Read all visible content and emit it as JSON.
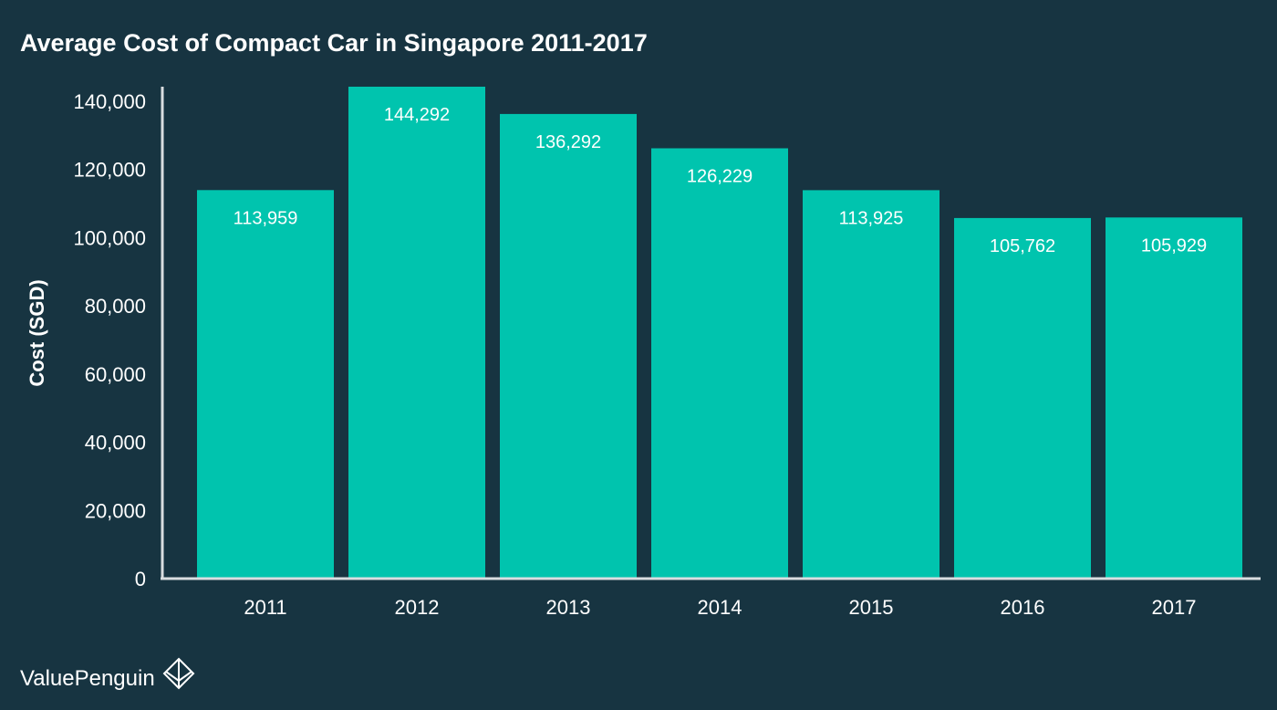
{
  "chart_data": {
    "type": "bar",
    "title": "Average Cost of Compact Car in Singapore 2011-2017",
    "xlabel": "",
    "ylabel": "Cost (SGD)",
    "categories": [
      "2011",
      "2012",
      "2013",
      "2014",
      "2015",
      "2016",
      "2017"
    ],
    "values": [
      113959,
      144292,
      136292,
      126229,
      113925,
      105762,
      105929
    ],
    "value_labels": [
      "113,959",
      "144,292",
      "136,292",
      "126,229",
      "113,925",
      "105,762",
      "105,929"
    ],
    "ylim": [
      0,
      144292
    ],
    "yticks": [
      0,
      20000,
      40000,
      60000,
      80000,
      100000,
      120000,
      140000
    ],
    "ytick_labels": [
      "0",
      "20,000",
      "40,000",
      "60,000",
      "80,000",
      "100,000",
      "120,000",
      "140,000"
    ],
    "grid": false,
    "legend": "none",
    "colors": {
      "background": "#173441",
      "bar": "#00c4ae",
      "axis": "#d9dde0",
      "text": "#ffffff"
    }
  },
  "branding": {
    "name": "ValuePenguin",
    "icon": "valuepenguin-logo-icon"
  }
}
